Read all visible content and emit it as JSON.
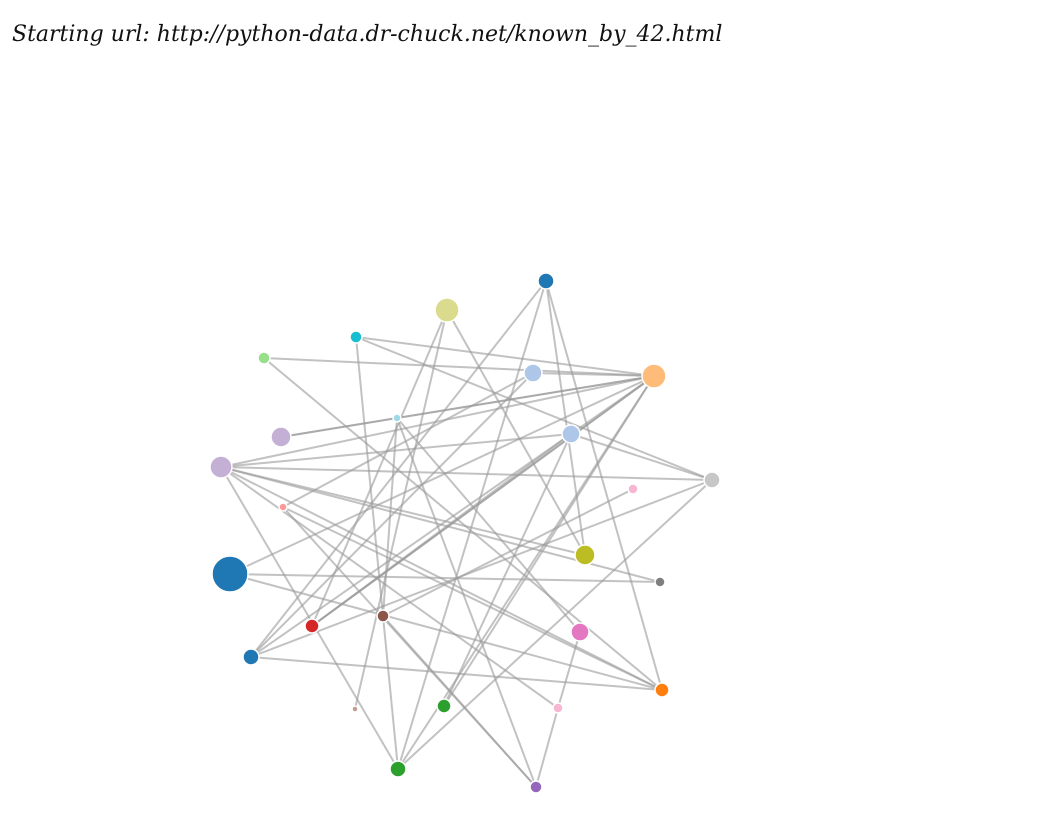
{
  "header": {
    "prefix": "Starting url: ",
    "url": "http://python-data.dr-chuck.net/known_by_42.html"
  },
  "graph": {
    "link_color": "#999999",
    "node_stroke": "#ffffff",
    "nodes": [
      {
        "id": "n0",
        "color": "#1f77b4"
      },
      {
        "id": "n1",
        "color": "#dbdb8d"
      },
      {
        "id": "n2",
        "color": "#17becf"
      },
      {
        "id": "n3",
        "color": "#98df8a"
      },
      {
        "id": "n4",
        "color": "#aec7e8"
      },
      {
        "id": "n5",
        "color": "#ffbb78"
      },
      {
        "id": "n6",
        "color": "#9edae5"
      },
      {
        "id": "n7",
        "color": "#c5b0d5"
      },
      {
        "id": "n8",
        "color": "#aec7e8"
      },
      {
        "id": "n9",
        "color": "#c5b0d5"
      },
      {
        "id": "n10",
        "color": "#ff9896"
      },
      {
        "id": "n11",
        "color": "#c7c7c7"
      },
      {
        "id": "n12",
        "color": "#f7b6d2"
      },
      {
        "id": "n13",
        "color": "#1f77b4"
      },
      {
        "id": "n14",
        "color": "#bcbd22"
      },
      {
        "id": "n15",
        "color": "#7f7f7f"
      },
      {
        "id": "n16",
        "color": "#d62728"
      },
      {
        "id": "n17",
        "color": "#8c564b"
      },
      {
        "id": "n18",
        "color": "#e377c2"
      },
      {
        "id": "n19",
        "color": "#1f77b4"
      },
      {
        "id": "n20",
        "color": "#ff7f0e"
      },
      {
        "id": "n21",
        "color": "#c49c94"
      },
      {
        "id": "n22",
        "color": "#2ca02c"
      },
      {
        "id": "n23",
        "color": "#f7b6d2"
      },
      {
        "id": "n24",
        "color": "#2ca02c"
      },
      {
        "id": "n25",
        "color": "#9467bd"
      }
    ],
    "links": [
      [
        "n0",
        "n19"
      ],
      [
        "n0",
        "n20"
      ],
      [
        "n0",
        "n14"
      ],
      [
        "n0",
        "n24"
      ],
      [
        "n1",
        "n14"
      ],
      [
        "n1",
        "n21"
      ],
      [
        "n1",
        "n16"
      ],
      [
        "n2",
        "n17"
      ],
      [
        "n2",
        "n11"
      ],
      [
        "n2",
        "n5"
      ],
      [
        "n3",
        "n5"
      ],
      [
        "n3",
        "n20"
      ],
      [
        "n4",
        "n5"
      ],
      [
        "n4",
        "n10"
      ],
      [
        "n4",
        "n19"
      ],
      [
        "n5",
        "n7"
      ],
      [
        "n5",
        "n9"
      ],
      [
        "n5",
        "n16"
      ],
      [
        "n5",
        "n22"
      ],
      [
        "n5",
        "n13"
      ],
      [
        "n5",
        "n24"
      ],
      [
        "n5",
        "n19"
      ],
      [
        "n6",
        "n17"
      ],
      [
        "n6",
        "n18"
      ],
      [
        "n6",
        "n25"
      ],
      [
        "n7",
        "n5"
      ],
      [
        "n8",
        "n22"
      ],
      [
        "n8",
        "n9"
      ],
      [
        "n8",
        "n11"
      ],
      [
        "n8",
        "n16"
      ],
      [
        "n9",
        "n20"
      ],
      [
        "n9",
        "n14"
      ],
      [
        "n9",
        "n15"
      ],
      [
        "n9",
        "n23"
      ],
      [
        "n9",
        "n24"
      ],
      [
        "n9",
        "n11"
      ],
      [
        "n10",
        "n25"
      ],
      [
        "n10",
        "n20"
      ],
      [
        "n11",
        "n19"
      ],
      [
        "n11",
        "n24"
      ],
      [
        "n12",
        "n17"
      ],
      [
        "n13",
        "n15"
      ],
      [
        "n13",
        "n20"
      ],
      [
        "n16",
        "n5"
      ],
      [
        "n17",
        "n24"
      ],
      [
        "n17",
        "n25"
      ],
      [
        "n18",
        "n23"
      ],
      [
        "n19",
        "n20"
      ],
      [
        "n23",
        "n25"
      ]
    ]
  }
}
